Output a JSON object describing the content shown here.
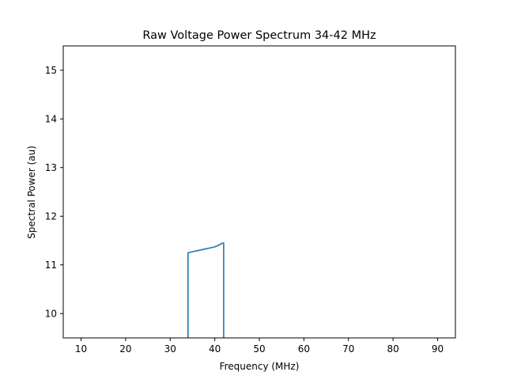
{
  "chart_data": {
    "type": "line",
    "title": "Raw Voltage Power Spectrum 34-42 MHz",
    "xlabel": "Frequency (MHz)",
    "ylabel": "Spectral Power (au)",
    "xlim": [
      6,
      94
    ],
    "ylim": [
      9.5,
      15.5
    ],
    "xticks": [
      10,
      20,
      30,
      40,
      50,
      60,
      70,
      80,
      90
    ],
    "yticks": [
      10,
      11,
      12,
      13,
      14,
      15
    ],
    "grid": false,
    "colors": {
      "series": "#1f77b4",
      "axes": "#000000",
      "background": "#ffffff"
    },
    "series": [
      {
        "x": [
          34.0,
          34.0,
          35.0,
          36.0,
          37.0,
          38.0,
          39.0,
          40.0,
          41.0,
          41.5,
          42.0,
          42.0
        ],
        "y": [
          9.0,
          11.25,
          11.27,
          11.29,
          11.31,
          11.33,
          11.35,
          11.37,
          11.41,
          11.44,
          11.45,
          9.0
        ]
      }
    ]
  }
}
